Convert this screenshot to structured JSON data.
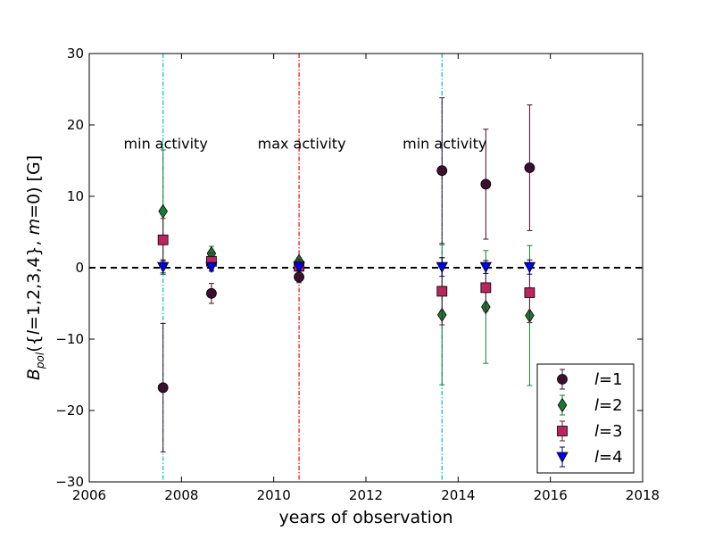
{
  "chart_data": {
    "type": "scatter",
    "xlabel": "years of observation",
    "ylabel": "B_pol({l=1,2,3,4}, m=0) [G]",
    "ylabel_parts": {
      "main": "B",
      "sub": "pol",
      "rest1": "({",
      "l": "l",
      "rest2": "=1,2,3,4}, ",
      "m": "m",
      "rest3": "=0) [G]"
    },
    "xlim": [
      2006,
      2018
    ],
    "ylim": [
      -30,
      30
    ],
    "xticks": [
      2006,
      2008,
      2010,
      2012,
      2014,
      2016,
      2018
    ],
    "yticks": [
      -30,
      -20,
      -10,
      0,
      10,
      20,
      30
    ],
    "grid": false,
    "legend_position": "lower right",
    "reference_line": {
      "y": 0,
      "style": "dashed",
      "color": "#000000"
    },
    "vertical_lines": [
      {
        "x": 2007.6,
        "color": "#00bfbf",
        "label": "min activity"
      },
      {
        "x": 2010.55,
        "color": "#ff0000",
        "label": "max activity"
      },
      {
        "x": 2013.65,
        "color": "#00bfbf",
        "label": "min activity"
      }
    ],
    "series": [
      {
        "name": "l=1",
        "legend_var": "l",
        "legend_val": "=1",
        "marker": "circle",
        "color": "#3b0f2e",
        "errcolor": "#3b0f2e",
        "points": [
          {
            "x": 2007.6,
            "y": -16.8,
            "err": 9.0
          },
          {
            "x": 2008.65,
            "y": -3.6,
            "err": 1.4
          },
          {
            "x": 2010.55,
            "y": -1.3,
            "err": 0.8
          },
          {
            "x": 2013.65,
            "y": 13.6,
            "err": 10.2
          },
          {
            "x": 2014.6,
            "y": 11.7,
            "err": 7.7
          },
          {
            "x": 2015.55,
            "y": 14.0,
            "err": 8.8
          }
        ]
      },
      {
        "name": "l=2",
        "legend_var": "l",
        "legend_val": "=2",
        "marker": "diamond",
        "color": "#1a7a33",
        "errcolor": "#1a7a33",
        "points": [
          {
            "x": 2007.6,
            "y": 7.9,
            "err": 8.6
          },
          {
            "x": 2008.65,
            "y": 2.0,
            "err": 1.0
          },
          {
            "x": 2010.55,
            "y": 0.9,
            "err": 0.5
          },
          {
            "x": 2013.65,
            "y": -6.6,
            "err": 9.8
          },
          {
            "x": 2014.6,
            "y": -5.5,
            "err": 7.9
          },
          {
            "x": 2015.55,
            "y": -6.7,
            "err": 9.8
          }
        ]
      },
      {
        "name": "l=3",
        "legend_var": "l",
        "legend_val": "=3",
        "marker": "square",
        "color": "#b8255f",
        "errcolor": "#5a1a3a",
        "points": [
          {
            "x": 2007.6,
            "y": 3.9,
            "err": 3.0
          },
          {
            "x": 2008.65,
            "y": 0.9,
            "err": 1.2
          },
          {
            "x": 2010.55,
            "y": 0.2,
            "err": 1.0
          },
          {
            "x": 2013.65,
            "y": -3.3,
            "err": 4.7
          },
          {
            "x": 2014.6,
            "y": -2.8,
            "err": 3.3
          },
          {
            "x": 2015.55,
            "y": -3.5,
            "err": 4.2
          }
        ]
      },
      {
        "name": "l=4",
        "legend_var": "l",
        "legend_val": "=4",
        "marker": "triangle-down",
        "color": "#0000ee",
        "errcolor": "#000066",
        "points": [
          {
            "x": 2007.6,
            "y": 0.1,
            "err": 1.0
          },
          {
            "x": 2008.65,
            "y": 0.1,
            "err": 0.6
          },
          {
            "x": 2010.55,
            "y": 0.1,
            "err": 0.5
          },
          {
            "x": 2013.65,
            "y": 0.1,
            "err": 1.3
          },
          {
            "x": 2014.6,
            "y": 0.1,
            "err": 0.9
          },
          {
            "x": 2015.55,
            "y": 0.1,
            "err": 1.0
          }
        ]
      }
    ]
  }
}
